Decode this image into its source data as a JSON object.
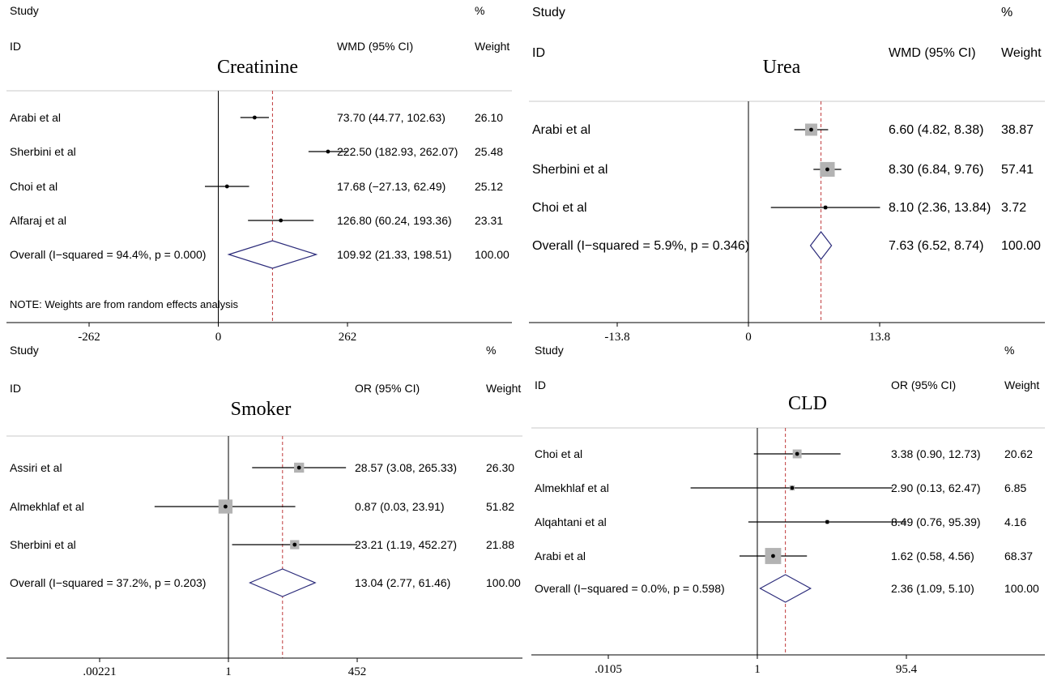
{
  "chart_data": [
    {
      "type": "forest",
      "title": "Creatinine",
      "header": {
        "study": "Study",
        "id": "ID",
        "estimate": "WMD (95% CI)",
        "pct": "%",
        "weight": "Weight"
      },
      "axis": {
        "ticks": [
          "-262",
          "0",
          "262"
        ],
        "tick_values": [
          -262,
          0,
          262
        ],
        "null_value": 0,
        "scale": "linear"
      },
      "studies": [
        {
          "name": "Arabi et al",
          "est": 73.7,
          "lo": 44.77,
          "hi": 102.63,
          "ci_text": "73.70 (44.77, 102.63)",
          "weight": "26.10"
        },
        {
          "name": "Sherbini et al",
          "est": 222.5,
          "lo": 182.93,
          "hi": 262.07,
          "ci_text": "222.50 (182.93, 262.07)",
          "weight": "25.48"
        },
        {
          "name": "Choi et al",
          "est": 17.68,
          "lo": -27.13,
          "hi": 62.49,
          "ci_text": "17.68 (−27.13, 62.49)",
          "weight": "25.12"
        },
        {
          "name": "Alfaraj et al",
          "est": 126.8,
          "lo": 60.24,
          "hi": 193.36,
          "ci_text": "126.80 (60.24, 193.36)",
          "weight": "23.31"
        }
      ],
      "overall": {
        "label": "Overall  (I−squared = 94.4%, p = 0.000)",
        "est": 109.92,
        "lo": 21.33,
        "hi": 198.51,
        "ci_text": "109.92 (21.33, 198.51)",
        "weight": "100.00"
      },
      "note": "NOTE: Weights are from random effects analysis"
    },
    {
      "type": "forest",
      "title": "Urea",
      "header": {
        "study": "Study",
        "id": "ID",
        "estimate": "WMD (95% CI)",
        "pct": "%",
        "weight": "Weight"
      },
      "axis": {
        "ticks": [
          "-13.8",
          "0",
          "13.8"
        ],
        "tick_values": [
          -13.8,
          0,
          13.8
        ],
        "null_value": 0,
        "scale": "linear"
      },
      "studies": [
        {
          "name": "Arabi et al",
          "est": 6.6,
          "lo": 4.82,
          "hi": 8.38,
          "ci_text": "6.60 (4.82, 8.38)",
          "weight": "38.87"
        },
        {
          "name": "Sherbini et al",
          "est": 8.3,
          "lo": 6.84,
          "hi": 9.76,
          "ci_text": "8.30 (6.84, 9.76)",
          "weight": "57.41"
        },
        {
          "name": "Choi et al",
          "est": 8.1,
          "lo": 2.36,
          "hi": 13.84,
          "ci_text": "8.10 (2.36, 13.84)",
          "weight": "3.72"
        }
      ],
      "overall": {
        "label": "Overall  (I−squared = 5.9%, p = 0.346)",
        "est": 7.63,
        "lo": 6.52,
        "hi": 8.74,
        "ci_text": "7.63 (6.52, 8.74)",
        "weight": "100.00"
      },
      "note": ""
    },
    {
      "type": "forest",
      "title": "Smoker",
      "header": {
        "study": "Study",
        "id": "ID",
        "estimate": "OR (95% CI)",
        "pct": "%",
        "weight": "Weight"
      },
      "axis": {
        "ticks": [
          ".00221",
          "1",
          "452"
        ],
        "tick_values": [
          0.00221,
          1,
          452
        ],
        "null_value": 1,
        "scale": "log"
      },
      "studies": [
        {
          "name": "Assiri et al",
          "est": 28.57,
          "lo": 3.08,
          "hi": 265.33,
          "ci_text": "28.57 (3.08, 265.33)",
          "weight": "26.30"
        },
        {
          "name": "Almekhlaf et al",
          "est": 0.87,
          "lo": 0.03,
          "hi": 23.91,
          "ci_text": "0.87 (0.03, 23.91)",
          "weight": "51.82"
        },
        {
          "name": "Sherbini et al",
          "est": 23.21,
          "lo": 1.19,
          "hi": 452.27,
          "ci_text": "23.21 (1.19, 452.27)",
          "weight": "21.88"
        }
      ],
      "overall": {
        "label": "Overall  (I−squared = 37.2%, p = 0.203)",
        "est": 13.04,
        "lo": 2.77,
        "hi": 61.46,
        "ci_text": "13.04 (2.77, 61.46)",
        "weight": "100.00"
      },
      "note": ""
    },
    {
      "type": "forest",
      "title": "CLD",
      "header": {
        "study": "Study",
        "id": "ID",
        "estimate": "OR (95% CI)",
        "pct": "%",
        "weight": "Weight"
      },
      "axis": {
        "ticks": [
          ".0105",
          "1",
          "95.4"
        ],
        "tick_values": [
          0.0105,
          1,
          95.4
        ],
        "null_value": 1,
        "scale": "log"
      },
      "studies": [
        {
          "name": "Choi et al",
          "est": 3.38,
          "lo": 0.9,
          "hi": 12.73,
          "ci_text": "3.38 (0.90, 12.73)",
          "weight": "20.62"
        },
        {
          "name": "Almekhlaf et al",
          "est": 2.9,
          "lo": 0.13,
          "hi": 62.47,
          "ci_text": "2.90 (0.13, 62.47)",
          "weight": "6.85"
        },
        {
          "name": "Alqahtani et al",
          "est": 8.49,
          "lo": 0.76,
          "hi": 95.39,
          "ci_text": "8.49 (0.76, 95.39)",
          "weight": "4.16"
        },
        {
          "name": "Arabi et al",
          "est": 1.62,
          "lo": 0.58,
          "hi": 4.56,
          "ci_text": "1.62 (0.58, 4.56)",
          "weight": "68.37"
        }
      ],
      "overall": {
        "label": "Overall  (I−squared = 0.0%, p = 0.598)",
        "est": 2.36,
        "lo": 1.09,
        "hi": 5.1,
        "ci_text": "2.36 (1.09, 5.10)",
        "weight": "100.00"
      },
      "note": ""
    }
  ],
  "colors": {
    "diamond": "#2b2b7a",
    "overall_line": "#c0393b",
    "weight_box": "#b3b3b3",
    "line": "#000000"
  }
}
